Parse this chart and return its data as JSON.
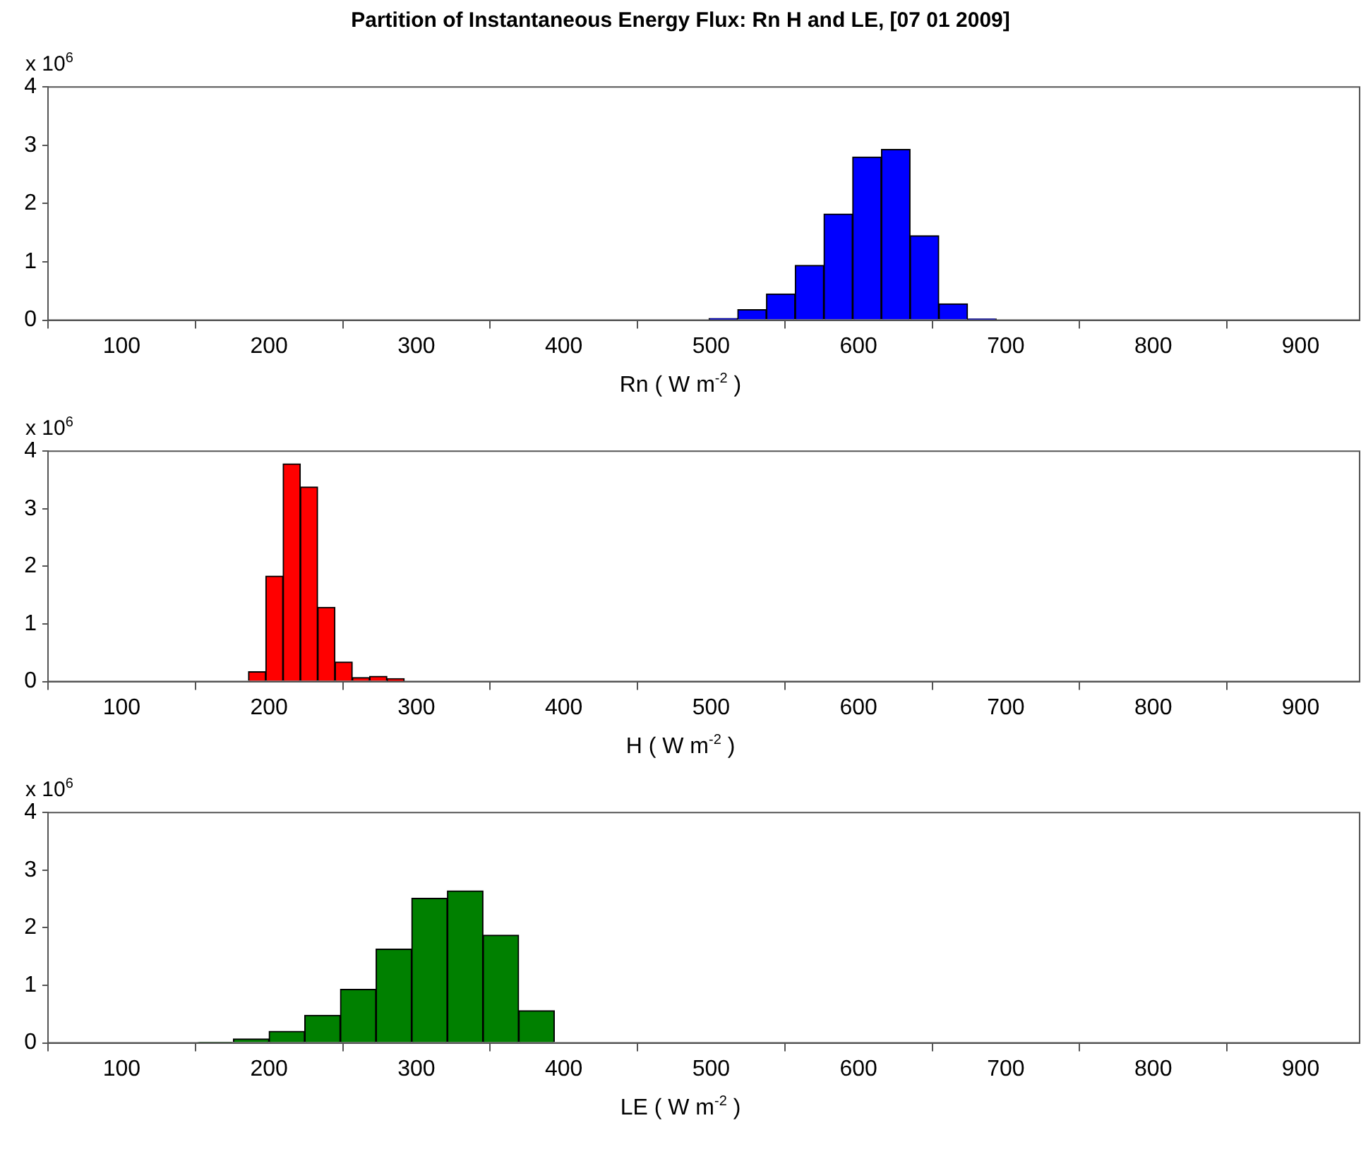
{
  "chart_data": [
    {
      "type": "histogram",
      "title": "Partition of Instantaneous Energy Flux: Rn H and LE, [07 01 2009]",
      "xlabel": "Rn ( W m$^{-2}$ )",
      "annotations": [
        "x 10$^{6}$"
      ],
      "color": "#0000ff",
      "bins": [
        498.5,
        518,
        537.5,
        557,
        576.5,
        596,
        615.5,
        635,
        654.5,
        674,
        693.5
      ],
      "values": [
        0.03,
        0.18,
        0.45,
        0.94,
        1.82,
        2.8,
        2.93,
        1.45,
        0.28,
        0.02
      ],
      "xlim": [
        50,
        940
      ],
      "xticks": [
        100,
        200,
        300,
        400,
        500,
        600,
        700,
        800,
        900
      ],
      "ylim": [
        0,
        4
      ],
      "yticks": [
        0,
        1,
        2,
        3,
        4
      ],
      "grid": false
    },
    {
      "type": "histogram",
      "xlabel": "H ( W m$^{-2}$ )",
      "annotations": [
        "x 10$^{6}$"
      ],
      "color": "#ff0000",
      "bins": [
        186,
        197.75,
        209.5,
        221.25,
        233,
        244.75,
        256.5,
        268.25,
        280,
        291.75
      ],
      "values": [
        0.17,
        1.83,
        3.78,
        3.38,
        1.29,
        0.34,
        0.07,
        0.09,
        0.05
      ],
      "xlim": [
        50,
        940
      ],
      "xticks": [
        100,
        200,
        300,
        400,
        500,
        600,
        700,
        800,
        900
      ],
      "ylim": [
        0,
        4
      ],
      "yticks": [
        0,
        1,
        2,
        3,
        4
      ],
      "grid": false
    },
    {
      "type": "histogram",
      "xlabel": "LE ( W m$^{-2}$ )",
      "annotations": [
        "x 10$^{6}$"
      ],
      "color": "#008000",
      "bins": [
        151.6,
        175.8,
        200,
        224.2,
        248.4,
        272.6,
        296.8,
        321,
        345.2,
        369.4,
        393.6
      ],
      "values": [
        0.01,
        0.07,
        0.2,
        0.48,
        0.93,
        1.63,
        2.51,
        2.64,
        1.87,
        0.56
      ],
      "xlim": [
        50,
        940
      ],
      "xticks": [
        100,
        200,
        300,
        400,
        500,
        600,
        700,
        800,
        900
      ],
      "ylim": [
        0,
        4
      ],
      "yticks": [
        0,
        1,
        2,
        3,
        4
      ],
      "grid": false
    }
  ]
}
